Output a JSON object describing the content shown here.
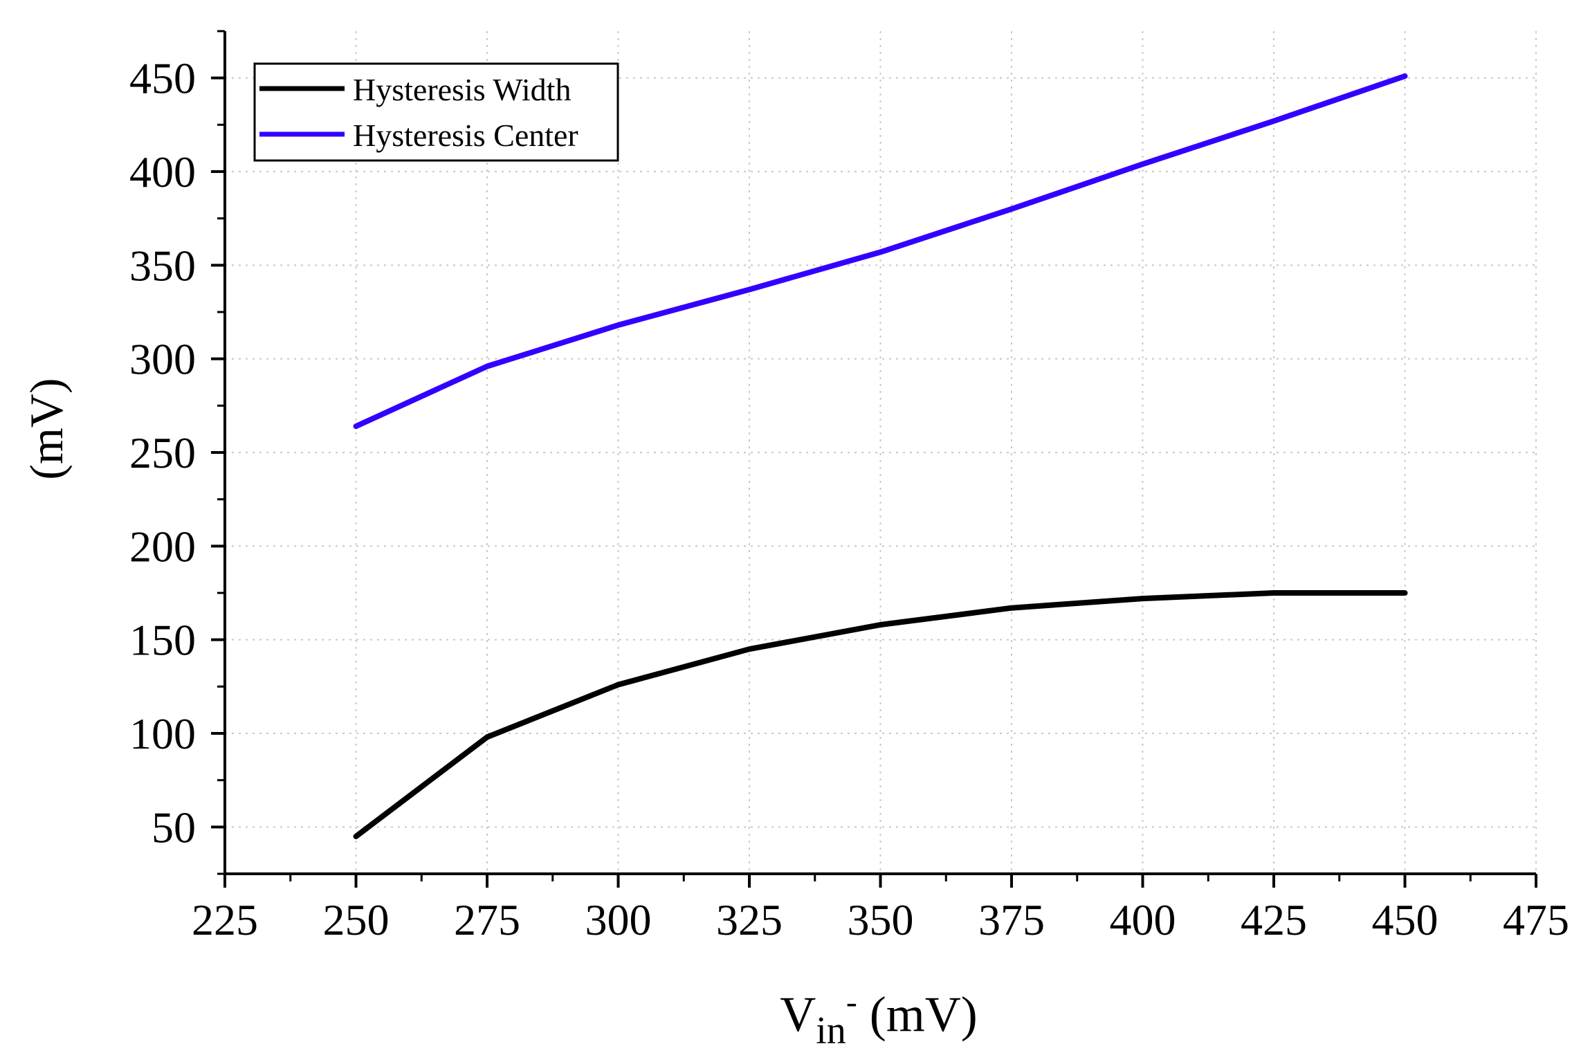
{
  "chart_data": {
    "type": "line",
    "title": "",
    "xlabel": {
      "main": "V",
      "sub": "in",
      "sup": "-",
      "unit": " (mV)"
    },
    "ylabel": "(mV)",
    "xlim": [
      225,
      475
    ],
    "ylim": [
      25,
      475
    ],
    "x_ticks": [
      225,
      250,
      275,
      300,
      325,
      350,
      375,
      400,
      425,
      450,
      475
    ],
    "y_ticks": [
      50,
      100,
      150,
      200,
      250,
      300,
      350,
      400,
      450
    ],
    "grid": true,
    "legend_position": "top-left",
    "x": [
      250,
      275,
      300,
      325,
      350,
      375,
      400,
      425,
      450
    ],
    "series": [
      {
        "name": "Hysteresis Width",
        "color": "#000000",
        "values": [
          45,
          98,
          126,
          145,
          158,
          167,
          172,
          175,
          175
        ]
      },
      {
        "name": "Hysteresis Center",
        "color": "#3300ff",
        "values": [
          264,
          296,
          318,
          337,
          357,
          380,
          404,
          427,
          451
        ]
      }
    ]
  }
}
